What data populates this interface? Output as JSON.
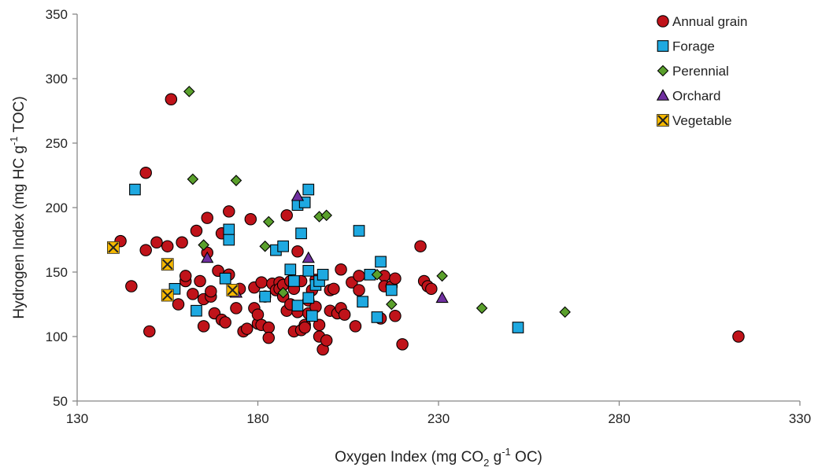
{
  "chart_data": {
    "type": "scatter",
    "xlabel": {
      "pre": "Oxygen Index (mg CO",
      "sub": "2",
      "post": " g",
      "sup": "-1",
      "post2": " OC)"
    },
    "ylabel": {
      "pre": "Hydrogen Index (mg HC g",
      "sup": "-1",
      "post": " TOC)"
    },
    "xlim": [
      130,
      330
    ],
    "ylim": [
      50,
      350
    ],
    "xticks": [
      "130",
      "180",
      "230",
      "280",
      "330"
    ],
    "yticks": [
      "50",
      "100",
      "150",
      "200",
      "250",
      "300",
      "350"
    ],
    "grid": false,
    "legend_position": "top-right",
    "series": [
      {
        "name": "Annual grain",
        "marker": "circle",
        "color": "#c0131a",
        "points": [
          [
            142,
            174
          ],
          [
            145,
            139
          ],
          [
            149,
            227
          ],
          [
            149,
            167
          ],
          [
            150,
            104
          ],
          [
            152,
            173
          ],
          [
            155,
            170
          ],
          [
            156,
            284
          ],
          [
            158,
            125
          ],
          [
            159,
            173
          ],
          [
            160,
            143
          ],
          [
            160,
            147
          ],
          [
            162,
            133
          ],
          [
            163,
            182
          ],
          [
            164,
            143
          ],
          [
            165,
            129
          ],
          [
            165,
            108
          ],
          [
            166,
            165
          ],
          [
            166,
            192
          ],
          [
            167,
            131
          ],
          [
            167,
            135
          ],
          [
            168,
            118
          ],
          [
            169,
            151
          ],
          [
            170,
            113
          ],
          [
            170,
            180
          ],
          [
            171,
            111
          ],
          [
            172,
            197
          ],
          [
            172,
            148
          ],
          [
            173,
            135
          ],
          [
            174,
            122
          ],
          [
            175,
            137
          ],
          [
            176,
            104
          ],
          [
            177,
            106
          ],
          [
            178,
            191
          ],
          [
            179,
            138
          ],
          [
            179,
            122
          ],
          [
            180,
            110
          ],
          [
            180,
            117
          ],
          [
            181,
            109
          ],
          [
            181,
            142
          ],
          [
            182,
            131
          ],
          [
            183,
            107
          ],
          [
            183,
            99
          ],
          [
            184,
            141
          ],
          [
            185,
            136
          ],
          [
            186,
            142
          ],
          [
            186,
            137
          ],
          [
            187,
            131
          ],
          [
            187,
            140
          ],
          [
            188,
            120
          ],
          [
            188,
            194
          ],
          [
            189,
            125
          ],
          [
            189,
            143
          ],
          [
            190,
            104
          ],
          [
            190,
            137
          ],
          [
            191,
            166
          ],
          [
            191,
            119
          ],
          [
            192,
            105
          ],
          [
            192,
            143
          ],
          [
            193,
            109
          ],
          [
            193,
            107
          ],
          [
            194,
            118
          ],
          [
            194,
            128
          ],
          [
            195,
            136
          ],
          [
            196,
            144
          ],
          [
            196,
            123
          ],
          [
            197,
            109
          ],
          [
            197,
            100
          ],
          [
            198,
            90
          ],
          [
            199,
            97
          ],
          [
            200,
            120
          ],
          [
            200,
            136
          ],
          [
            201,
            137
          ],
          [
            202,
            118
          ],
          [
            203,
            152
          ],
          [
            203,
            122
          ],
          [
            204,
            117
          ],
          [
            206,
            142
          ],
          [
            207,
            108
          ],
          [
            208,
            136
          ],
          [
            208,
            147
          ],
          [
            214,
            114
          ],
          [
            215,
            147
          ],
          [
            215,
            139
          ],
          [
            217,
            139
          ],
          [
            218,
            116
          ],
          [
            218,
            145
          ],
          [
            220,
            94
          ],
          [
            225,
            170
          ],
          [
            226,
            143
          ],
          [
            227,
            139
          ],
          [
            228,
            137
          ],
          [
            313,
            100
          ]
        ]
      },
      {
        "name": "Forage",
        "marker": "square",
        "color": "#1ea9e1",
        "points": [
          [
            146,
            214
          ],
          [
            157,
            137
          ],
          [
            163,
            120
          ],
          [
            171,
            145
          ],
          [
            172,
            183
          ],
          [
            172,
            175
          ],
          [
            182,
            131
          ],
          [
            185,
            167
          ],
          [
            187,
            170
          ],
          [
            189,
            152
          ],
          [
            190,
            143
          ],
          [
            191,
            202
          ],
          [
            191,
            124
          ],
          [
            192,
            180
          ],
          [
            193,
            204
          ],
          [
            194,
            214
          ],
          [
            194,
            151
          ],
          [
            194,
            130
          ],
          [
            195,
            116
          ],
          [
            196,
            140
          ],
          [
            197,
            143
          ],
          [
            198,
            148
          ],
          [
            208,
            182
          ],
          [
            209,
            127
          ],
          [
            211,
            148
          ],
          [
            213,
            115
          ],
          [
            214,
            158
          ],
          [
            217,
            136
          ],
          [
            252,
            107
          ]
        ]
      },
      {
        "name": "Perennial",
        "marker": "diamond",
        "color": "#5aa02c",
        "points": [
          [
            161,
            290
          ],
          [
            162,
            222
          ],
          [
            165,
            171
          ],
          [
            174,
            221
          ],
          [
            182,
            170
          ],
          [
            183,
            189
          ],
          [
            187,
            134
          ],
          [
            197,
            193
          ],
          [
            199,
            194
          ],
          [
            213,
            148
          ],
          [
            217,
            125
          ],
          [
            231,
            147
          ],
          [
            242,
            122
          ],
          [
            265,
            119
          ]
        ]
      },
      {
        "name": "Orchard",
        "marker": "triangle",
        "color": "#7030a0",
        "points": [
          [
            166,
            161
          ],
          [
            174,
            134
          ],
          [
            191,
            209
          ],
          [
            194,
            161
          ],
          [
            231,
            130
          ]
        ]
      },
      {
        "name": "Vegetable",
        "marker": "x-box",
        "color": "#f5b800",
        "points": [
          [
            140,
            169
          ],
          [
            155,
            156
          ],
          [
            155,
            132
          ],
          [
            173,
            136
          ]
        ]
      }
    ]
  }
}
